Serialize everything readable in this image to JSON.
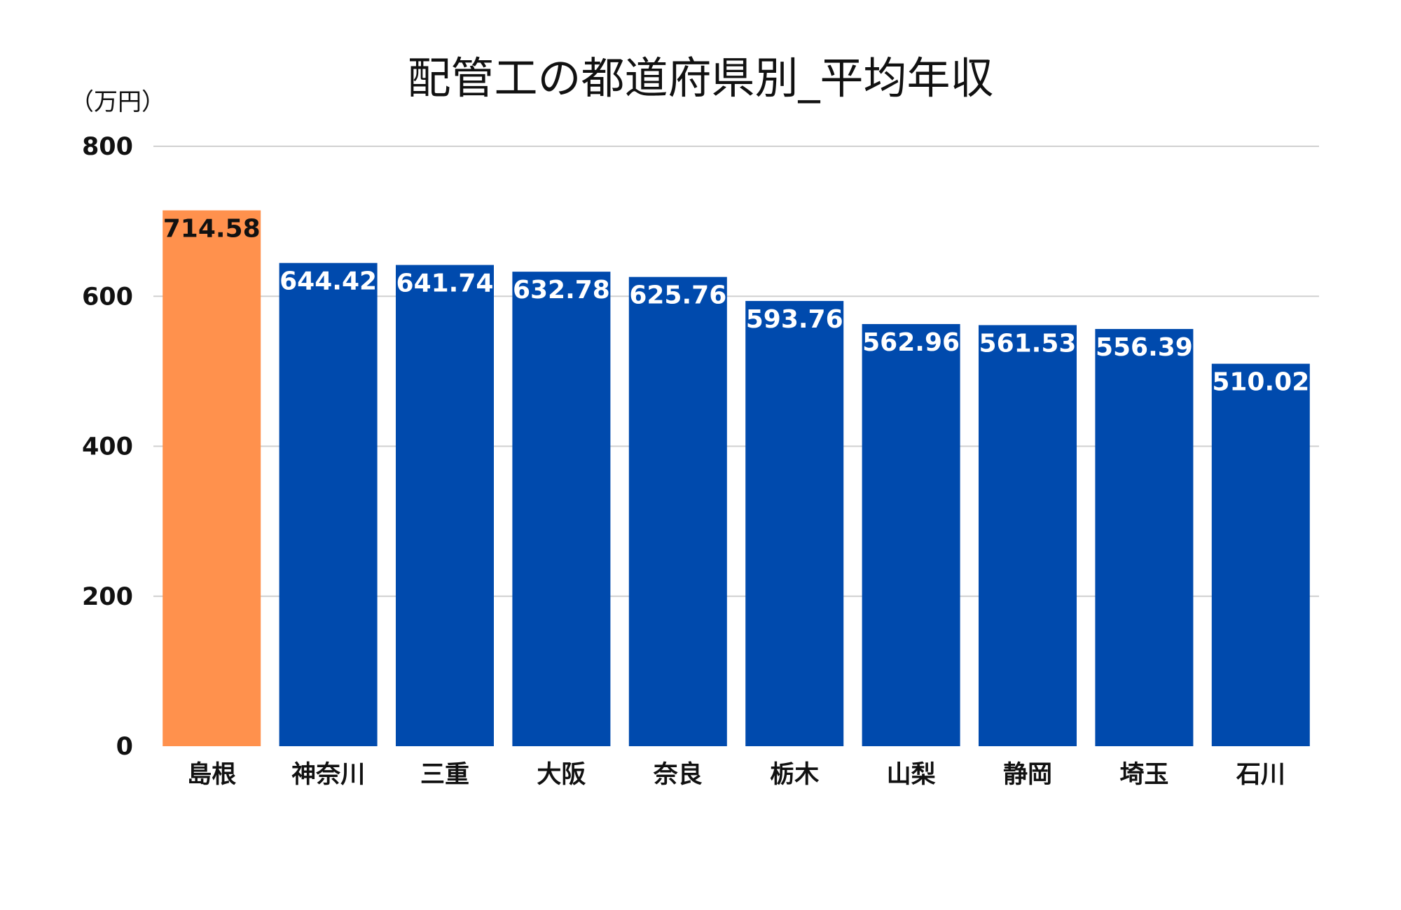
{
  "chart_data": {
    "type": "bar",
    "title": "配管工の都道府県別_平均年収",
    "ylabel": "（万円）",
    "xlabel": "",
    "ylim": [
      0,
      800
    ],
    "yticks": [
      0,
      200,
      400,
      600,
      800
    ],
    "grid": true,
    "categories": [
      "島根",
      "神奈川",
      "三重",
      "大阪",
      "奈良",
      "栃木",
      "山梨",
      "静岡",
      "埼玉",
      "石川"
    ],
    "values": [
      714.58,
      644.42,
      641.74,
      632.78,
      625.76,
      593.76,
      562.96,
      561.53,
      556.39,
      510.02
    ],
    "data_labels": [
      "714.58",
      "644.42",
      "641.74",
      "632.78",
      "625.76",
      "593.76",
      "562.96",
      "561.53",
      "556.39",
      "510.02"
    ],
    "highlight_index": 0,
    "colors": {
      "bar": "#004aad",
      "highlight": "#ff914d",
      "label_on_bar": "#ffffff",
      "label_on_highlight": "#111111"
    }
  }
}
